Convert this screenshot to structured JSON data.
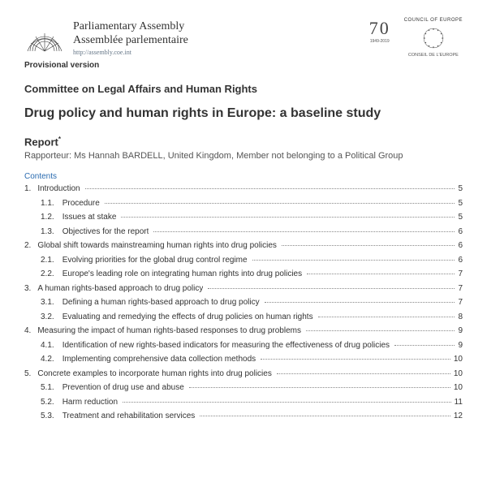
{
  "header": {
    "pa_line1": "Parliamentary Assembly",
    "pa_line2": "Assemblée parlementaire",
    "pa_url": "http://assembly.coe.int",
    "seventy": "70",
    "seventy_dates": "1949-2019",
    "coe_label": "COUNCIL OF EUROPE",
    "coe_sub": "CONSEIL DE L'EUROPE",
    "provisional": "Provisional version"
  },
  "committee": "Committee on Legal Affairs and Human Rights",
  "title": "Drug policy and human rights in Europe: a baseline study",
  "report_label": "Report",
  "rapporteur": "Rapporteur: Ms Hannah BARDELL, United Kingdom, Member not belonging to a Political Group",
  "contents_label": "Contents",
  "toc": [
    {
      "level": 0,
      "num": "1.",
      "text": "Introduction",
      "page": "5"
    },
    {
      "level": 1,
      "num": "1.1.",
      "text": "Procedure",
      "page": "5"
    },
    {
      "level": 1,
      "num": "1.2.",
      "text": "Issues at stake",
      "page": "5"
    },
    {
      "level": 1,
      "num": "1.3.",
      "text": "Objectives for the report",
      "page": "6"
    },
    {
      "level": 0,
      "num": "2.",
      "text": "Global shift towards mainstreaming human rights into drug policies",
      "page": "6"
    },
    {
      "level": 1,
      "num": "2.1.",
      "text": "Evolving priorities for the global drug control regime",
      "page": "6"
    },
    {
      "level": 1,
      "num": "2.2.",
      "text": "Europe's leading role on integrating human rights into drug policies",
      "page": "7"
    },
    {
      "level": 0,
      "num": "3.",
      "text": "A human rights-based approach to drug policy",
      "page": "7"
    },
    {
      "level": 1,
      "num": "3.1.",
      "text": "Defining a human rights-based approach to drug policy",
      "page": "7"
    },
    {
      "level": 1,
      "num": "3.2.",
      "text": "Evaluating and remedying the effects of drug policies on human rights",
      "page": "8"
    },
    {
      "level": 0,
      "num": "4.",
      "text": "Measuring the impact of human rights-based responses to drug problems",
      "page": "9"
    },
    {
      "level": 1,
      "num": "4.1.",
      "text": "Identification of new rights-based indicators for measuring the effectiveness of drug policies",
      "page": "9"
    },
    {
      "level": 1,
      "num": "4.2.",
      "text": "Implementing comprehensive data collection methods",
      "page": "10"
    },
    {
      "level": 0,
      "num": "5.",
      "text": "Concrete examples to incorporate human rights into drug policies",
      "page": "10"
    },
    {
      "level": 1,
      "num": "5.1.",
      "text": "Prevention of drug use and abuse",
      "page": "10"
    },
    {
      "level": 1,
      "num": "5.2.",
      "text": "Harm reduction",
      "page": "11"
    },
    {
      "level": 1,
      "num": "5.3.",
      "text": "Treatment and rehabilitation services",
      "page": "12"
    }
  ],
  "colors": {
    "text": "#333333",
    "subtext": "#555555",
    "link": "#2a6bb0",
    "dot": "#888888",
    "background": "#ffffff"
  }
}
